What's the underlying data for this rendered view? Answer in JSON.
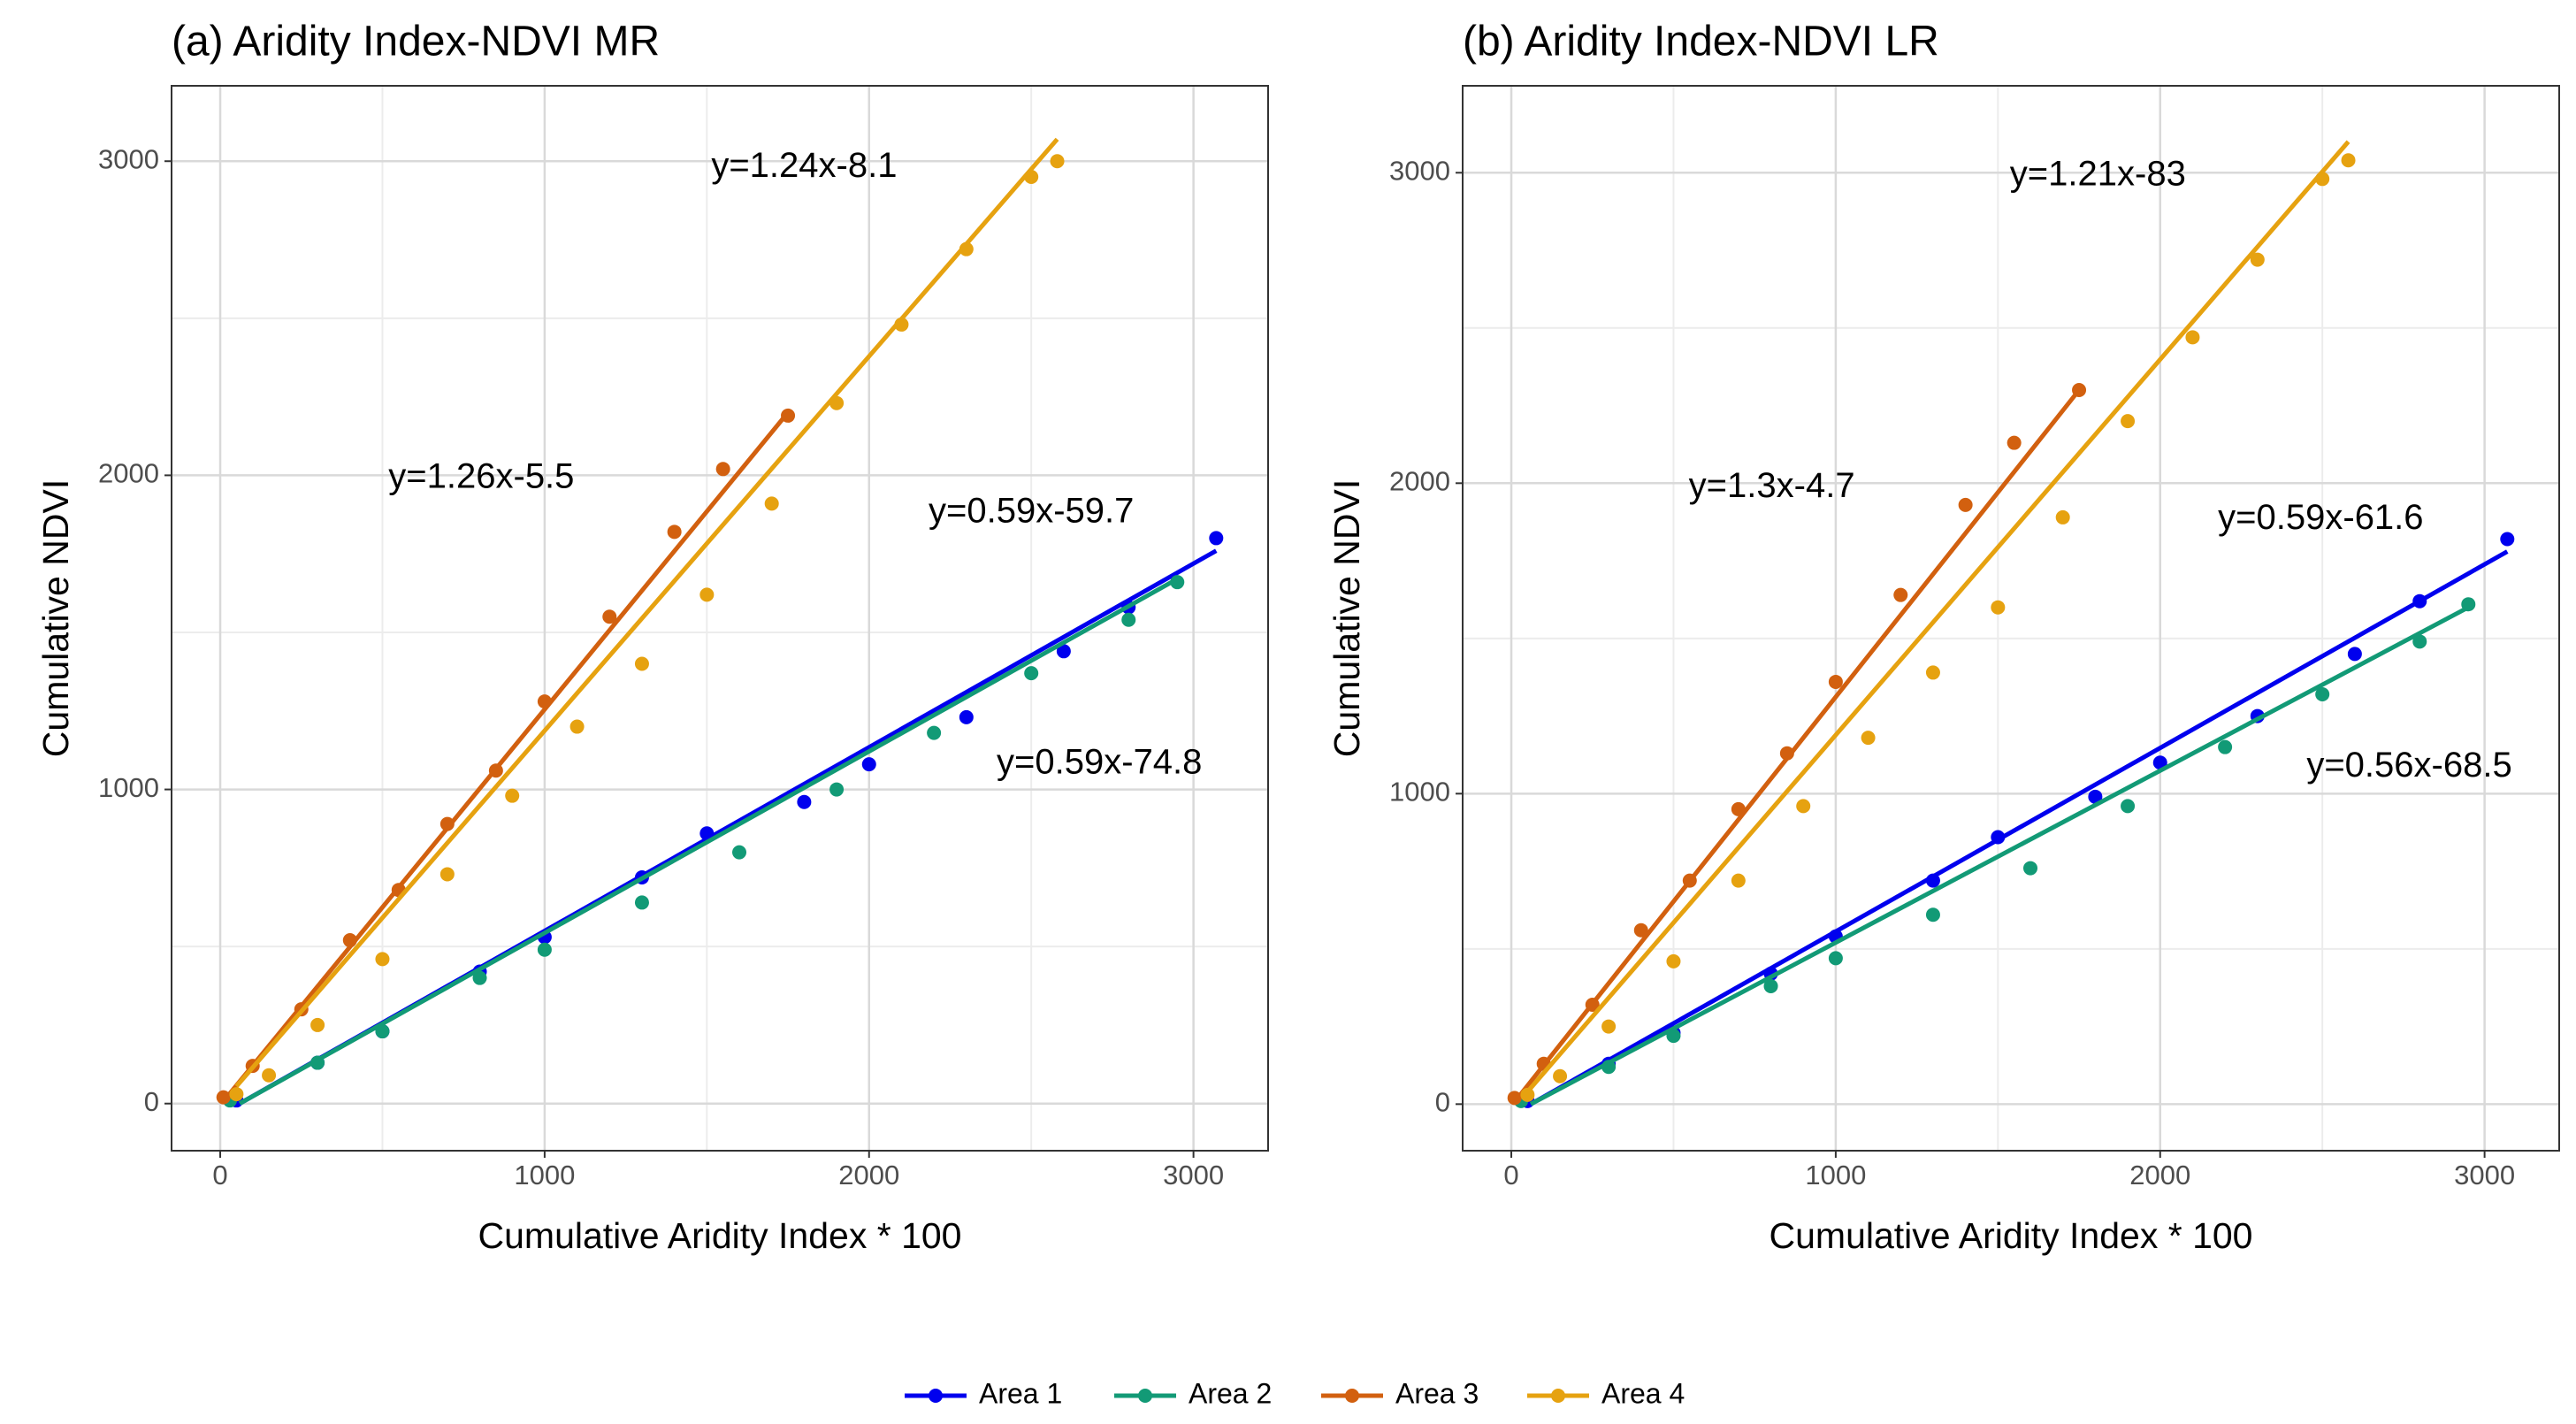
{
  "chart_data": [
    {
      "type": "scatter",
      "title": "(a) Aridity Index-NDVI MR",
      "xlabel": "Cumulative Aridity Index * 100",
      "ylabel": "Cumulative NDVI",
      "xlim": [
        -150,
        3230
      ],
      "ylim": [
        -150,
        3240
      ],
      "xticks": [
        0,
        1000,
        2000,
        3000
      ],
      "yticks": [
        0,
        1000,
        2000,
        3000
      ],
      "x_minor_grid": [
        500,
        1500,
        2500
      ],
      "y_minor_grid": [
        500,
        1500,
        2500
      ],
      "grid": true,
      "annotations": [
        "y=1.24x-8.1",
        "y=1.26x-5.5",
        "y=0.59x-59.7",
        "y=0.59x-74.8"
      ],
      "series": [
        {
          "name": "Area 1",
          "color": "#0000ee",
          "x": [
            50,
            300,
            500,
            800,
            1000,
            1300,
            1500,
            1800,
            2000,
            2300,
            2600,
            2800,
            3070
          ],
          "values": [
            10,
            130,
            230,
            420,
            530,
            720,
            860,
            960,
            1080,
            1230,
            1440,
            1580,
            1800
          ],
          "fit_x": [
            60,
            3070
          ],
          "fit_values": [
            0,
            1760
          ]
        },
        {
          "name": "Area 2",
          "color": "#129a76",
          "x": [
            30,
            300,
            500,
            800,
            1000,
            1300,
            1600,
            1900,
            2200,
            2500,
            2800,
            2950
          ],
          "values": [
            10,
            130,
            230,
            400,
            490,
            640,
            800,
            1000,
            1180,
            1370,
            1540,
            1660
          ],
          "fit_x": [
            60,
            2950
          ],
          "fit_values": [
            0,
            1670
          ]
        },
        {
          "name": "Area 3",
          "color": "#d2600f",
          "x": [
            10,
            100,
            250,
            400,
            550,
            700,
            850,
            1000,
            1200,
            1400,
            1550,
            1750
          ],
          "values": [
            20,
            120,
            300,
            520,
            680,
            890,
            1060,
            1280,
            1550,
            1820,
            2020,
            2190
          ],
          "fit_x": [
            20,
            1750
          ],
          "fit_values": [
            20,
            2200
          ]
        },
        {
          "name": "Area 4",
          "color": "#e6a210",
          "x": [
            50,
            150,
            300,
            500,
            700,
            900,
            1100,
            1300,
            1500,
            1700,
            1900,
            2100,
            2300,
            2500,
            2580
          ],
          "values": [
            30,
            90,
            250,
            460,
            730,
            980,
            1200,
            1400,
            1620,
            1910,
            2230,
            2480,
            2720,
            2950,
            3000
          ],
          "fit_x": [
            50,
            2580
          ],
          "fit_values": [
            55,
            3070
          ]
        }
      ]
    },
    {
      "type": "scatter",
      "title": "(b) Aridity Index-NDVI LR",
      "xlabel": "Cumulative Aridity Index * 100",
      "ylabel": "Cumulative NDVI",
      "xlim": [
        -150,
        3230
      ],
      "ylim": [
        -150,
        3280
      ],
      "xticks": [
        0,
        1000,
        2000,
        3000
      ],
      "yticks": [
        0,
        1000,
        2000,
        3000
      ],
      "x_minor_grid": [
        500,
        1500,
        2500
      ],
      "y_minor_grid": [
        500,
        1500,
        2500
      ],
      "grid": true,
      "annotations": [
        "y=1.21x-83",
        "y=1.3x-4.7",
        "y=0.59x-61.6",
        "y=0.56x-68.5"
      ],
      "series": [
        {
          "color": "#0000ee",
          "x": [
            50,
            300,
            500,
            800,
            1000,
            1300,
            1500,
            1800,
            2000,
            2300,
            2600,
            2800,
            3070
          ],
          "values": [
            10,
            130,
            230,
            420,
            540,
            720,
            860,
            990,
            1100,
            1250,
            1450,
            1620,
            1820
          ],
          "fit_x": [
            60,
            3070
          ],
          "fit_values": [
            0,
            1780
          ]
        },
        {
          "color": "#129a76",
          "x": [
            30,
            300,
            500,
            800,
            1000,
            1300,
            1600,
            1900,
            2200,
            2500,
            2800,
            2950
          ],
          "values": [
            10,
            120,
            220,
            380,
            470,
            610,
            760,
            960,
            1150,
            1320,
            1490,
            1610
          ],
          "fit_x": [
            60,
            2950
          ],
          "fit_values": [
            0,
            1600
          ]
        },
        {
          "color": "#d2600f",
          "x": [
            10,
            100,
            250,
            400,
            550,
            700,
            850,
            1000,
            1200,
            1400,
            1550,
            1750
          ],
          "values": [
            20,
            130,
            320,
            560,
            720,
            950,
            1130,
            1360,
            1640,
            1930,
            2130,
            2300
          ],
          "fit_x": [
            20,
            1750
          ],
          "fit_values": [
            20,
            2300
          ]
        },
        {
          "color": "#e6a210",
          "x": [
            50,
            150,
            300,
            500,
            700,
            900,
            1100,
            1300,
            1500,
            1700,
            1900,
            2100,
            2300,
            2500,
            2580
          ],
          "values": [
            30,
            90,
            250,
            460,
            720,
            960,
            1180,
            1390,
            1600,
            1890,
            2200,
            2470,
            2720,
            2980,
            3040
          ],
          "fit_x": [
            50,
            2580
          ],
          "fit_values": [
            40,
            3100
          ]
        }
      ]
    }
  ]
}
